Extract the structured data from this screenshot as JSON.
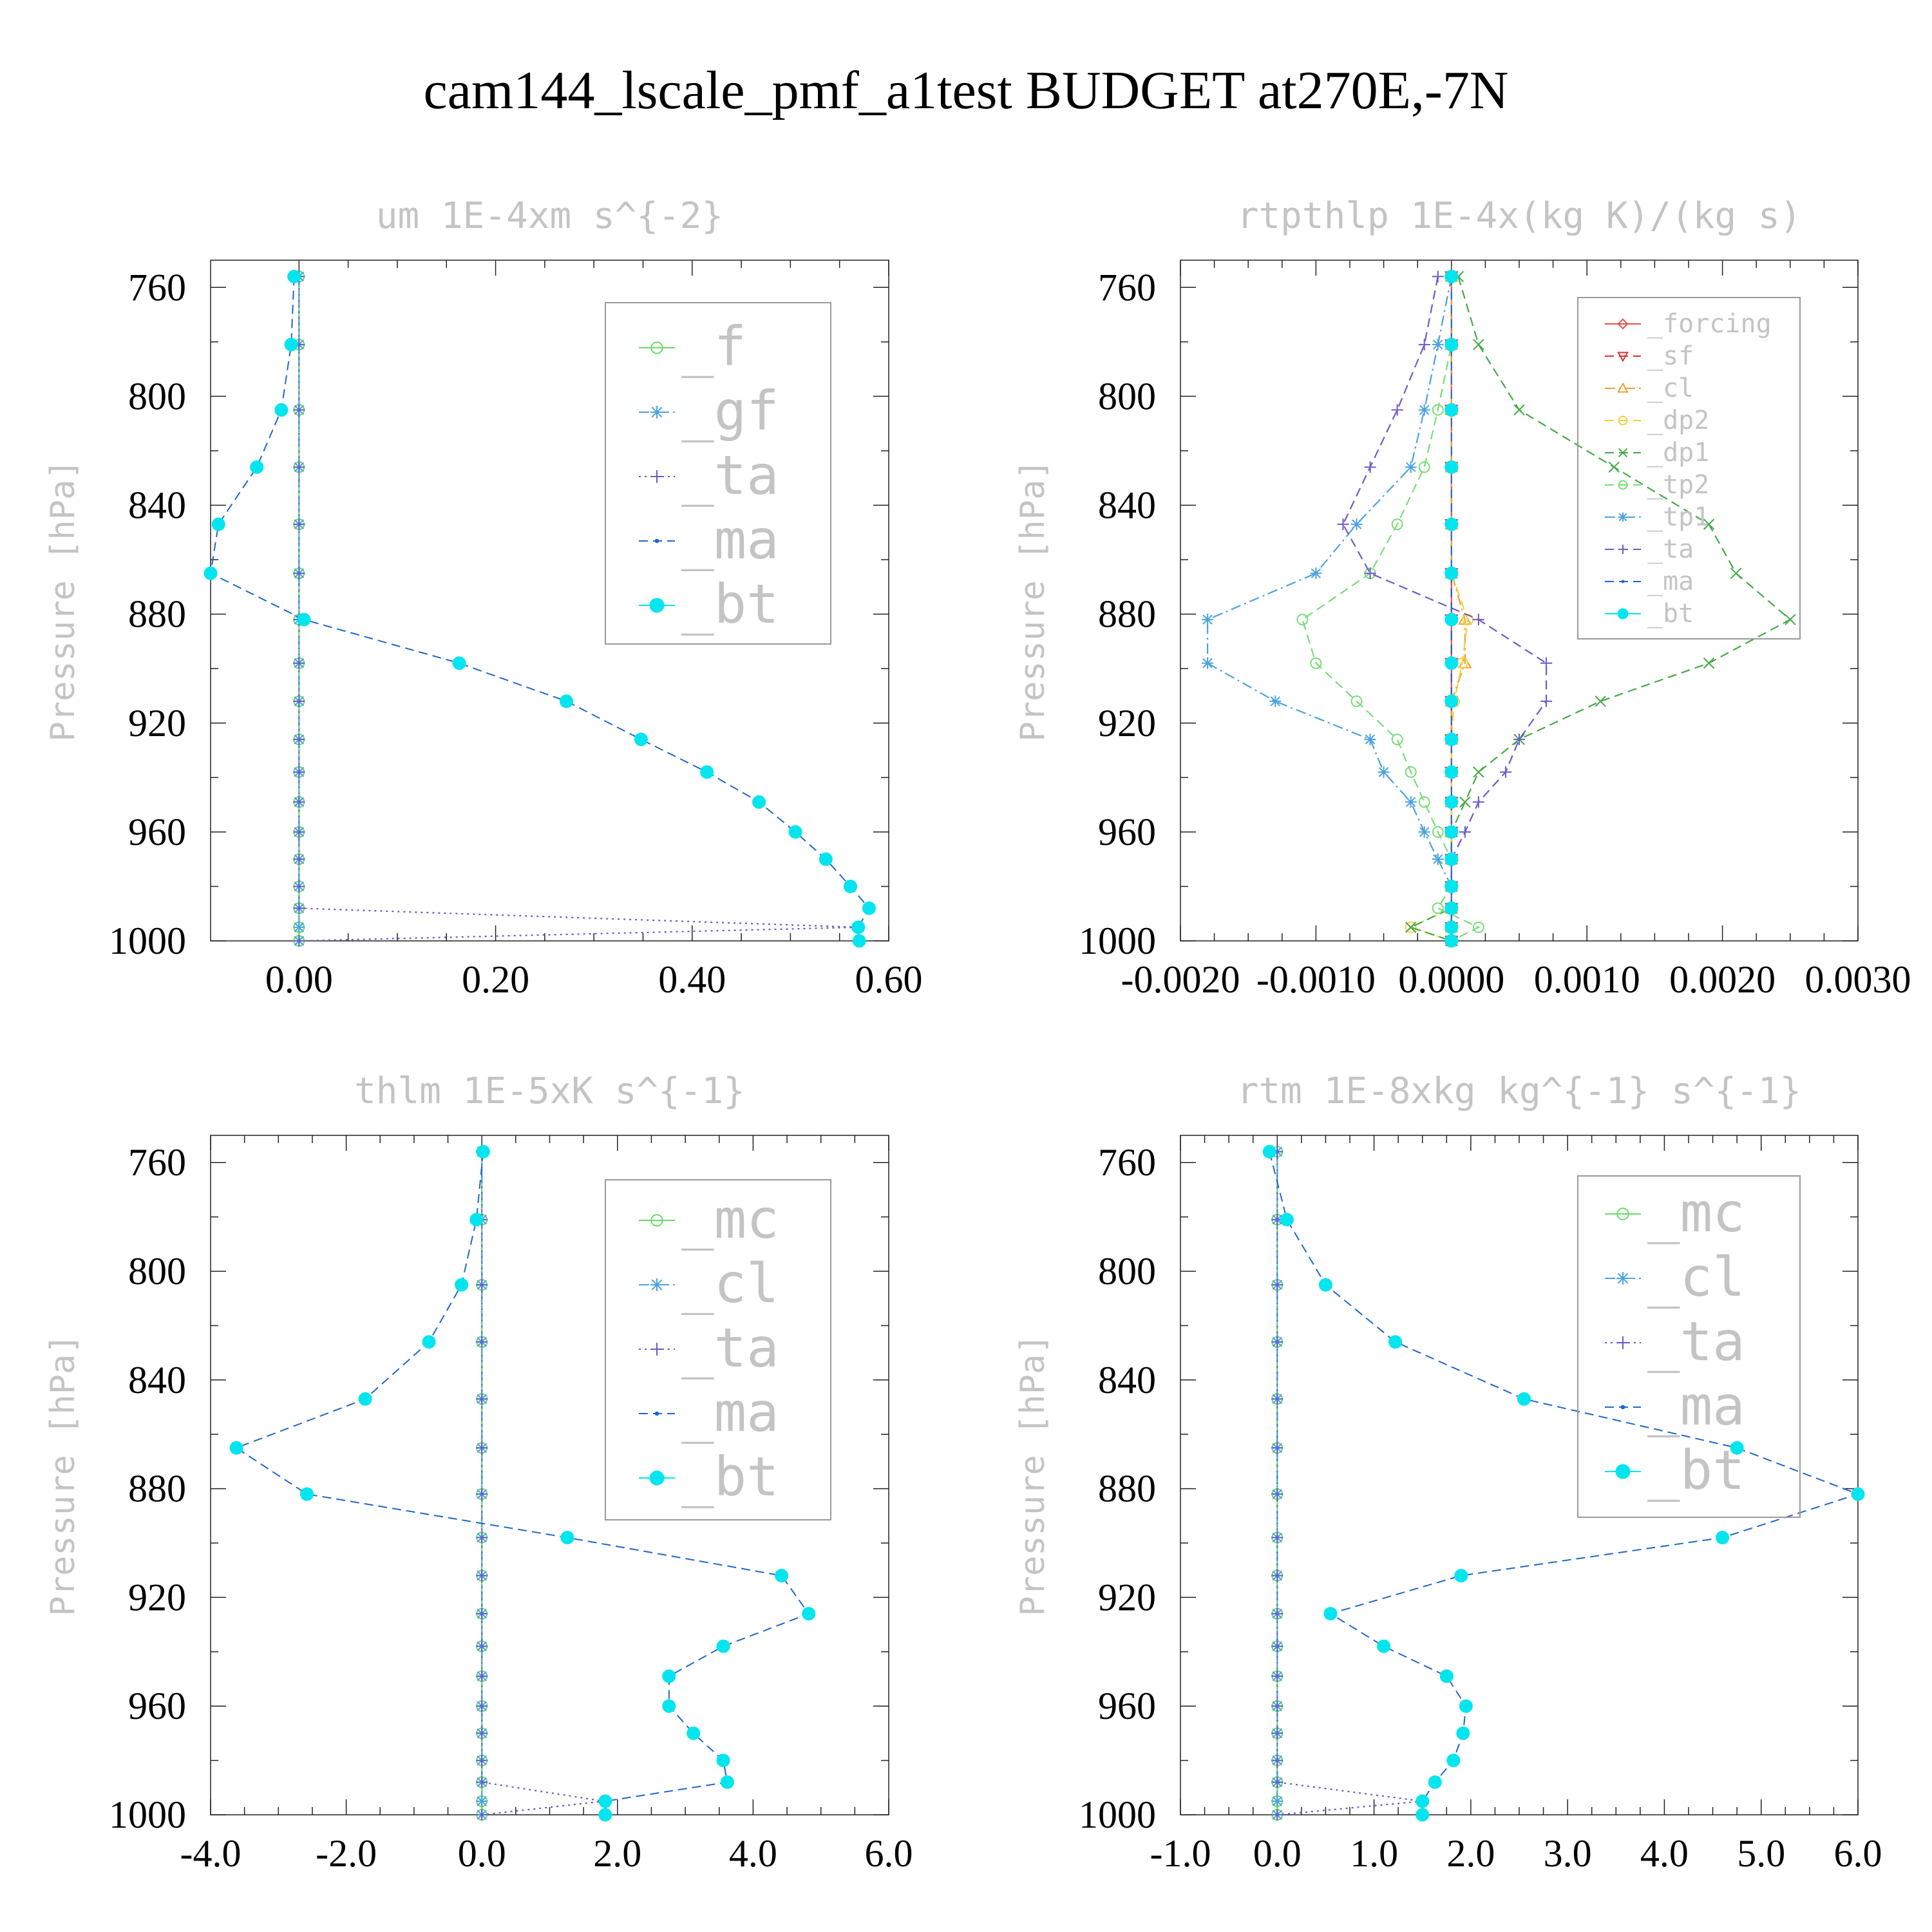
{
  "page": {
    "title": "cam144_lscale_pmf_a1test  BUDGET at270E,-7N"
  },
  "chart_data": [
    {
      "type": "line",
      "title": "um  1E-4xm s^{-2}",
      "ylabel": "Pressure [hPa]",
      "y_inverted": true,
      "ylim": [
        1000,
        750
      ],
      "xlim": [
        -0.09,
        0.6
      ],
      "xticks": [
        "0.00",
        "0.20",
        "0.40",
        "0.60"
      ],
      "yticks": [
        "760",
        "800",
        "840",
        "880",
        "920",
        "960",
        "1000"
      ],
      "legend_position": "top-right",
      "levels": [
        756,
        781,
        805,
        826,
        847,
        865,
        882,
        898,
        912,
        926,
        938,
        949,
        960,
        970,
        980,
        988,
        995,
        1000
      ],
      "series": [
        {
          "name": "_f",
          "color": "#66dd66",
          "marker": "circle",
          "dash": "solid",
          "values": [
            0,
            0,
            0,
            0,
            0,
            0,
            0,
            0,
            0,
            0,
            0,
            0,
            0,
            0,
            0,
            0,
            0,
            0
          ]
        },
        {
          "name": "_gf",
          "color": "#4aa3df",
          "marker": "star",
          "dash": "dashdot",
          "values": [
            0,
            0,
            0,
            0,
            0,
            0,
            0,
            0,
            0,
            0,
            0,
            0,
            0,
            0,
            0,
            0,
            0,
            0
          ]
        },
        {
          "name": "_ta",
          "color": "#6a5acd",
          "marker": "plus",
          "dash": "dotted",
          "values": [
            0,
            0,
            0,
            0,
            0,
            0,
            0,
            0,
            0,
            0,
            0,
            0,
            0,
            0,
            0,
            0,
            0.57,
            0.0
          ]
        },
        {
          "name": "_ma",
          "color": "#1e66cc",
          "marker": "dot",
          "dash": "dashed",
          "values": [
            -0.005,
            -0.008,
            -0.018,
            -0.043,
            -0.082,
            -0.092,
            0.005,
            0.163,
            0.272,
            0.348,
            0.415,
            0.468,
            0.505,
            0.536,
            0.561,
            0.58,
            0.569,
            0.57
          ]
        },
        {
          "name": "_bt",
          "color": "#00e5ee",
          "marker": "bigdot",
          "dash": "none",
          "values": [
            -0.005,
            -0.008,
            -0.018,
            -0.043,
            -0.082,
            -0.092,
            0.005,
            0.163,
            0.272,
            0.348,
            0.415,
            0.468,
            0.505,
            0.536,
            0.561,
            0.58,
            0.569,
            0.57
          ]
        }
      ]
    },
    {
      "type": "line",
      "title": "rtpthlp  1E-4x(kg K)/(kg s)",
      "ylabel": "Pressure [hPa]",
      "y_inverted": true,
      "ylim": [
        1000,
        750
      ],
      "xlim": [
        -0.002,
        0.003
      ],
      "xticks": [
        "-0.0020",
        "-0.0010",
        "0.0000",
        "0.0010",
        "0.0020",
        "0.0030"
      ],
      "yticks": [
        "760",
        "800",
        "840",
        "880",
        "920",
        "960",
        "1000"
      ],
      "legend_position": "top-right",
      "levels": [
        756,
        781,
        805,
        826,
        847,
        865,
        882,
        898,
        912,
        926,
        938,
        949,
        960,
        970,
        980,
        988,
        995,
        1000
      ],
      "series": [
        {
          "name": "_forcing",
          "color": "#e05050",
          "marker": "diamond",
          "dash": "solid",
          "values": [
            0,
            0,
            0,
            0,
            0,
            0,
            0,
            0,
            0,
            0,
            0,
            0,
            0,
            0,
            0,
            0,
            0,
            0
          ]
        },
        {
          "name": "_sf",
          "color": "#e03030",
          "marker": "triangle-down",
          "dash": "dashed",
          "values": [
            0,
            0,
            0,
            0,
            0,
            0,
            0,
            0,
            0,
            0,
            0,
            0,
            0,
            0,
            0,
            0,
            0,
            0
          ]
        },
        {
          "name": "_cl",
          "color": "#f0a030",
          "marker": "triangle-up",
          "dash": "dashdot",
          "values": [
            0,
            0,
            0,
            0,
            0,
            0,
            0.0001,
            0.0001,
            0,
            0,
            0,
            0,
            0,
            0,
            0,
            0,
            0,
            0
          ]
        },
        {
          "name": "_dp2",
          "color": "#f5d040",
          "marker": "circle",
          "dash": "dashed",
          "values": [
            0,
            0,
            0,
            0,
            0,
            0,
            0.00012,
            8e-05,
            2e-05,
            0,
            0,
            0,
            0,
            0,
            0,
            0,
            -0.0003,
            0
          ]
        },
        {
          "name": "_dp1",
          "color": "#44aa44",
          "marker": "cross",
          "dash": "dashed",
          "values": [
            5e-05,
            0.0002,
            0.0005,
            0.0012,
            0.0019,
            0.0021,
            0.0025,
            0.0019,
            0.0011,
            0.0005,
            0.0002,
            0.0001,
            0,
            0,
            0,
            0,
            -0.0003,
            0
          ]
        },
        {
          "name": "_tp2",
          "color": "#77dd77",
          "marker": "circle",
          "dash": "dashed",
          "values": [
            0,
            0,
            -0.0001,
            -0.0002,
            -0.0004,
            -0.0006,
            -0.0011,
            -0.001,
            -0.0007,
            -0.0004,
            -0.0003,
            -0.0002,
            -0.0001,
            0,
            0,
            -0.0001,
            0.0002,
            0
          ]
        },
        {
          "name": "_tp1",
          "color": "#4aa3df",
          "marker": "star",
          "dash": "dashdot",
          "values": [
            0,
            -0.0001,
            -0.0002,
            -0.0003,
            -0.0007,
            -0.001,
            -0.0018,
            -0.0018,
            -0.0013,
            -0.0006,
            -0.0005,
            -0.0003,
            -0.0002,
            -0.0001,
            0,
            0,
            0,
            0
          ]
        },
        {
          "name": "_ta",
          "color": "#6a5acd",
          "marker": "plus",
          "dash": "dashed",
          "values": [
            -0.0001,
            -0.0002,
            -0.0004,
            -0.0006,
            -0.0008,
            -0.0006,
            0.0002,
            0.0007,
            0.0007,
            0.0005,
            0.0004,
            0.0002,
            0.0001,
            0,
            0,
            0,
            0,
            0
          ]
        },
        {
          "name": "_ma",
          "color": "#1e66cc",
          "marker": "dot",
          "dash": "dashed",
          "values": [
            0,
            0,
            0,
            0,
            0,
            0,
            0,
            0,
            0,
            0,
            0,
            0,
            0,
            0,
            0,
            0,
            0,
            0
          ]
        },
        {
          "name": "_bt",
          "color": "#00e5ee",
          "marker": "bigdot",
          "dash": "none",
          "values": [
            0,
            0,
            0,
            0,
            0,
            0,
            0,
            0,
            0,
            0,
            0,
            0,
            0,
            0,
            0,
            0,
            0,
            0
          ]
        }
      ]
    },
    {
      "type": "line",
      "title": "thlm  1E-5xK s^{-1}",
      "ylabel": "Pressure [hPa]",
      "y_inverted": true,
      "ylim": [
        1000,
        750
      ],
      "xlim": [
        -4.0,
        6.0
      ],
      "xticks": [
        "-4.0",
        "-2.0",
        "0.0",
        "2.0",
        "4.0",
        "6.0"
      ],
      "yticks": [
        "760",
        "800",
        "840",
        "880",
        "920",
        "960",
        "1000"
      ],
      "legend_position": "top-right",
      "levels": [
        756,
        781,
        805,
        826,
        847,
        865,
        882,
        898,
        912,
        926,
        938,
        949,
        960,
        970,
        980,
        988,
        995,
        1000
      ],
      "series": [
        {
          "name": "_mc",
          "color": "#66dd66",
          "marker": "circle",
          "dash": "solid",
          "values": [
            0,
            0,
            0,
            0,
            0,
            0,
            0,
            0,
            0,
            0,
            0,
            0,
            0,
            0,
            0,
            0,
            0,
            0
          ]
        },
        {
          "name": "_cl",
          "color": "#4aa3df",
          "marker": "star",
          "dash": "dashdot",
          "values": [
            0,
            0,
            0,
            0,
            0,
            0,
            0,
            0,
            0,
            0,
            0,
            0,
            0,
            0,
            0,
            0,
            0,
            0
          ]
        },
        {
          "name": "_ta",
          "color": "#6a5acd",
          "marker": "plus",
          "dash": "dotted",
          "values": [
            0,
            0,
            0,
            0,
            0,
            0,
            0,
            0,
            0,
            0,
            0,
            0,
            0,
            0,
            0,
            0,
            1.8,
            0
          ]
        },
        {
          "name": "_ma",
          "color": "#1e66cc",
          "marker": "dot",
          "dash": "dashed",
          "values": [
            0.02,
            -0.08,
            -0.3,
            -0.78,
            -1.72,
            -3.62,
            -2.58,
            1.26,
            4.42,
            4.82,
            3.56,
            2.76,
            2.76,
            3.12,
            3.56,
            3.62,
            1.82,
            1.82
          ]
        },
        {
          "name": "_bt",
          "color": "#00e5ee",
          "marker": "bigdot",
          "dash": "none",
          "values": [
            0.02,
            -0.08,
            -0.3,
            -0.78,
            -1.72,
            -3.62,
            -2.58,
            1.26,
            4.42,
            4.82,
            3.56,
            2.76,
            2.76,
            3.12,
            3.56,
            3.62,
            1.82,
            1.82
          ]
        }
      ]
    },
    {
      "type": "line",
      "title": "rtm  1E-8xkg kg^{-1} s^{-1}",
      "ylabel": "Pressure [hPa]",
      "y_inverted": true,
      "ylim": [
        1000,
        750
      ],
      "xlim": [
        -1.0,
        6.0
      ],
      "xticks": [
        "-1.0",
        "0.0",
        "1.0",
        "2.0",
        "3.0",
        "4.0",
        "5.0",
        "6.0"
      ],
      "yticks": [
        "760",
        "800",
        "840",
        "880",
        "920",
        "960",
        "1000"
      ],
      "legend_position": "top-right",
      "levels": [
        756,
        781,
        805,
        826,
        847,
        865,
        882,
        898,
        912,
        926,
        938,
        949,
        960,
        970,
        980,
        988,
        995,
        1000
      ],
      "series": [
        {
          "name": "_mc",
          "color": "#66dd66",
          "marker": "circle",
          "dash": "solid",
          "values": [
            0,
            0,
            0,
            0,
            0,
            0,
            0,
            0,
            0,
            0,
            0,
            0,
            0,
            0,
            0,
            0,
            0,
            0
          ]
        },
        {
          "name": "_cl",
          "color": "#4aa3df",
          "marker": "star",
          "dash": "dashdot",
          "values": [
            0,
            0,
            0,
            0,
            0,
            0,
            0,
            0,
            0,
            0,
            0,
            0,
            0,
            0,
            0,
            0,
            0,
            0
          ]
        },
        {
          "name": "_ta",
          "color": "#6a5acd",
          "marker": "plus",
          "dash": "dotted",
          "values": [
            0,
            0,
            0,
            0,
            0,
            0,
            0,
            0,
            0,
            0,
            0,
            0,
            0,
            0,
            0,
            0,
            1.5,
            0
          ]
        },
        {
          "name": "_ma",
          "color": "#1e66cc",
          "marker": "dot",
          "dash": "dashed",
          "values": [
            -0.08,
            0.1,
            0.5,
            1.22,
            2.55,
            4.75,
            6.0,
            4.6,
            1.9,
            0.55,
            1.1,
            1.75,
            1.95,
            1.92,
            1.82,
            1.63,
            1.5,
            1.5
          ]
        },
        {
          "name": "_bt",
          "color": "#00e5ee",
          "marker": "bigdot",
          "dash": "none",
          "values": [
            -0.08,
            0.1,
            0.5,
            1.22,
            2.55,
            4.75,
            6.0,
            4.6,
            1.9,
            0.55,
            1.1,
            1.75,
            1.95,
            1.92,
            1.82,
            1.63,
            1.5,
            1.5
          ]
        }
      ]
    }
  ]
}
